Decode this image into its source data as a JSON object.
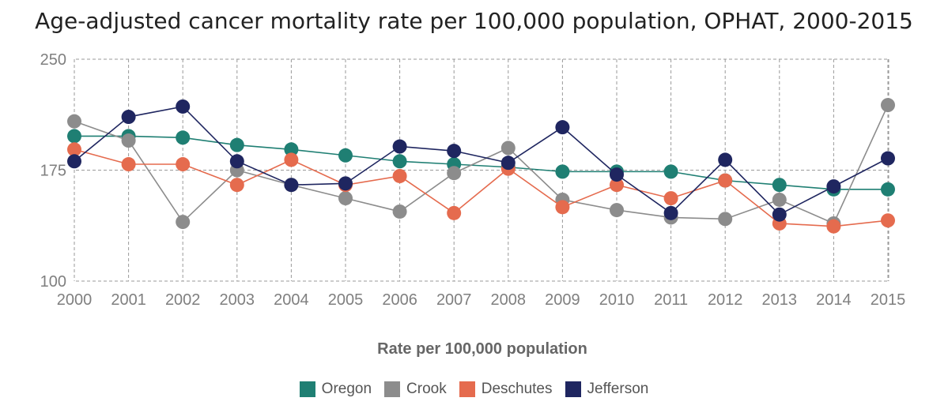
{
  "chart_data": {
    "type": "line",
    "title": "Age-adjusted cancer mortality rate per 100,000 population, OPHAT, 2000-2015",
    "xlabel": "Rate per 100,000 population",
    "ylabel": "",
    "x": [
      "2000",
      "2001",
      "2002",
      "2003",
      "2004",
      "2005",
      "2006",
      "2007",
      "2008",
      "2009",
      "2010",
      "2011",
      "2012",
      "2013",
      "2014",
      "2015"
    ],
    "ylim": [
      100,
      250
    ],
    "yticks": [
      100,
      175,
      250
    ],
    "grid": true,
    "legend_position": "bottom",
    "series": [
      {
        "name": "Oregon",
        "color": "#1f7f73",
        "values": [
          198,
          198,
          197,
          192,
          189,
          185,
          181,
          179,
          177,
          174,
          174,
          174,
          168,
          165,
          162,
          162
        ]
      },
      {
        "name": "Crook",
        "color": "#8c8c8c",
        "values": [
          208,
          195,
          140,
          175,
          165,
          156,
          147,
          173,
          190,
          155,
          148,
          143,
          142,
          155,
          139,
          219
        ]
      },
      {
        "name": "Deschutes",
        "color": "#e56b4e",
        "values": [
          189,
          179,
          179,
          165,
          182,
          165,
          171,
          146,
          176,
          150,
          165,
          156,
          168,
          139,
          137,
          141
        ]
      },
      {
        "name": "Jefferson",
        "color": "#1f2660",
        "values": [
          181,
          211,
          218,
          181,
          165,
          166,
          191,
          188,
          180,
          204,
          172,
          146,
          182,
          145,
          164,
          183
        ]
      }
    ]
  }
}
